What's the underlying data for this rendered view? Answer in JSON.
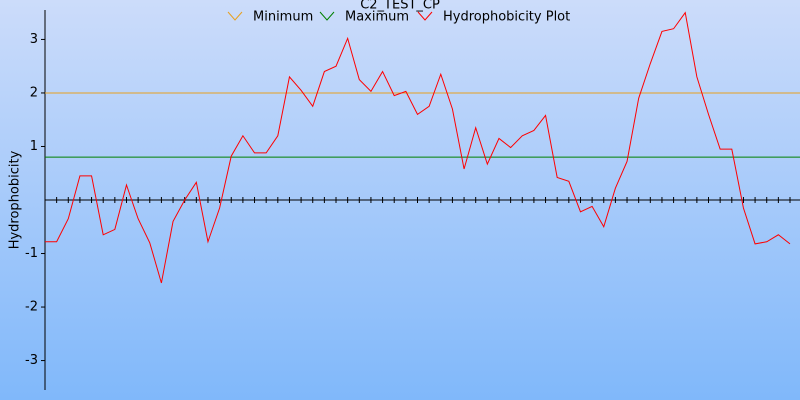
{
  "chart_data": {
    "type": "line",
    "title": "C2_TEST_CP",
    "y_label": "Hydrophobicity",
    "ylim": [
      -3.55,
      3.55
    ],
    "yticks": [
      -3,
      -2,
      -1,
      1,
      2,
      3
    ],
    "series": [
      {
        "name": "Minimum",
        "color": "#e8a020",
        "value": 2.0
      },
      {
        "name": "Maximum",
        "color": "#008000",
        "value": 0.8
      },
      {
        "name": "Hydrophobicity Plot",
        "color": "#ff0000",
        "values": [
          -0.78,
          -0.78,
          -0.35,
          0.45,
          0.45,
          -0.65,
          -0.55,
          0.28,
          -0.35,
          -0.8,
          -1.55,
          -0.4,
          0.0,
          0.33,
          -0.78,
          -0.15,
          0.82,
          1.2,
          0.88,
          0.88,
          1.2,
          2.3,
          2.05,
          1.75,
          2.4,
          2.5,
          3.02,
          2.25,
          2.03,
          2.4,
          1.95,
          2.03,
          1.6,
          1.75,
          2.35,
          1.7,
          0.58,
          1.35,
          0.67,
          1.15,
          0.98,
          1.2,
          1.3,
          1.58,
          0.42,
          0.35,
          -0.22,
          -0.12,
          -0.5,
          0.22,
          0.72,
          1.9,
          2.55,
          3.15,
          3.2,
          3.5,
          2.3,
          1.6,
          0.95,
          0.95,
          -0.15,
          -0.82,
          -0.78,
          -0.65,
          -0.82
        ]
      }
    ]
  }
}
